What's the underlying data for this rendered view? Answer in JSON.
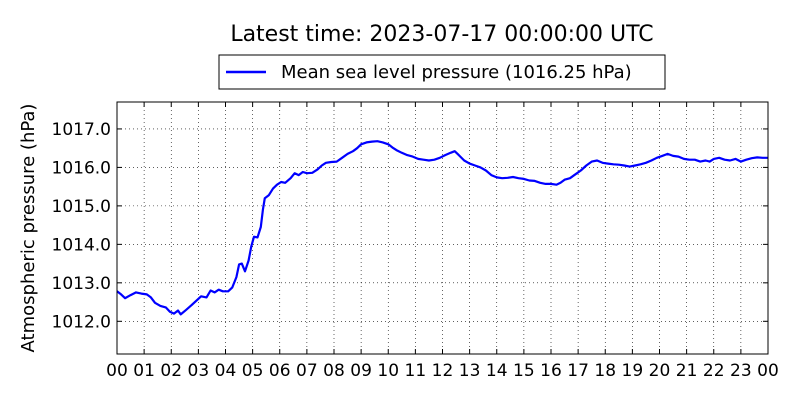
{
  "chart_data": {
    "type": "line",
    "title": "Latest time: 2023-07-17 00:00:00 UTC",
    "xlabel": "",
    "ylabel": "Atmospheric pressure (hPa)",
    "ylim": [
      1011.15,
      1017.7
    ],
    "xlim": [
      0,
      24
    ],
    "grid": true,
    "legend_position": "top-center",
    "color": "#0000ff",
    "x_ticks": [
      "00",
      "01",
      "02",
      "03",
      "04",
      "05",
      "06",
      "07",
      "08",
      "09",
      "10",
      "11",
      "12",
      "13",
      "14",
      "15",
      "16",
      "17",
      "18",
      "19",
      "20",
      "21",
      "22",
      "23",
      "00"
    ],
    "y_ticks": [
      "1012.0",
      "1013.0",
      "1014.0",
      "1015.0",
      "1016.0",
      "1017.0"
    ],
    "series": [
      {
        "name": "Mean sea level pressure (1016.25 hPa)",
        "points": [
          [
            0.0,
            1012.78
          ],
          [
            0.15,
            1012.7
          ],
          [
            0.3,
            1012.6
          ],
          [
            0.5,
            1012.68
          ],
          [
            0.7,
            1012.75
          ],
          [
            0.9,
            1012.72
          ],
          [
            1.1,
            1012.7
          ],
          [
            1.25,
            1012.62
          ],
          [
            1.4,
            1012.48
          ],
          [
            1.6,
            1012.4
          ],
          [
            1.8,
            1012.36
          ],
          [
            1.95,
            1012.25
          ],
          [
            2.1,
            1012.2
          ],
          [
            2.25,
            1012.28
          ],
          [
            2.35,
            1012.18
          ],
          [
            2.55,
            1012.3
          ],
          [
            2.75,
            1012.42
          ],
          [
            2.9,
            1012.52
          ],
          [
            3.1,
            1012.65
          ],
          [
            3.3,
            1012.62
          ],
          [
            3.45,
            1012.8
          ],
          [
            3.6,
            1012.75
          ],
          [
            3.75,
            1012.82
          ],
          [
            3.9,
            1012.78
          ],
          [
            4.1,
            1012.78
          ],
          [
            4.25,
            1012.88
          ],
          [
            4.4,
            1013.15
          ],
          [
            4.5,
            1013.48
          ],
          [
            4.6,
            1013.5
          ],
          [
            4.72,
            1013.3
          ],
          [
            4.85,
            1013.58
          ],
          [
            4.95,
            1013.95
          ],
          [
            5.05,
            1014.2
          ],
          [
            5.18,
            1014.18
          ],
          [
            5.3,
            1014.45
          ],
          [
            5.38,
            1014.9
          ],
          [
            5.45,
            1015.2
          ],
          [
            5.6,
            1015.28
          ],
          [
            5.75,
            1015.45
          ],
          [
            5.9,
            1015.55
          ],
          [
            6.05,
            1015.62
          ],
          [
            6.2,
            1015.6
          ],
          [
            6.4,
            1015.72
          ],
          [
            6.55,
            1015.85
          ],
          [
            6.7,
            1015.8
          ],
          [
            6.85,
            1015.88
          ],
          [
            7.0,
            1015.85
          ],
          [
            7.2,
            1015.86
          ],
          [
            7.4,
            1015.95
          ],
          [
            7.55,
            1016.05
          ],
          [
            7.7,
            1016.12
          ],
          [
            7.9,
            1016.14
          ],
          [
            8.1,
            1016.15
          ],
          [
            8.3,
            1016.25
          ],
          [
            8.5,
            1016.35
          ],
          [
            8.7,
            1016.42
          ],
          [
            8.85,
            1016.5
          ],
          [
            9.0,
            1016.6
          ],
          [
            9.2,
            1016.65
          ],
          [
            9.4,
            1016.67
          ],
          [
            9.6,
            1016.68
          ],
          [
            9.8,
            1016.65
          ],
          [
            10.0,
            1016.6
          ],
          [
            10.15,
            1016.52
          ],
          [
            10.3,
            1016.45
          ],
          [
            10.5,
            1016.38
          ],
          [
            10.7,
            1016.32
          ],
          [
            10.9,
            1016.28
          ],
          [
            11.1,
            1016.22
          ],
          [
            11.3,
            1016.2
          ],
          [
            11.5,
            1016.18
          ],
          [
            11.7,
            1016.2
          ],
          [
            11.9,
            1016.25
          ],
          [
            12.1,
            1016.32
          ],
          [
            12.3,
            1016.38
          ],
          [
            12.45,
            1016.42
          ],
          [
            12.6,
            1016.32
          ],
          [
            12.8,
            1016.18
          ],
          [
            13.0,
            1016.1
          ],
          [
            13.2,
            1016.05
          ],
          [
            13.4,
            1016.0
          ],
          [
            13.6,
            1015.92
          ],
          [
            13.8,
            1015.8
          ],
          [
            14.0,
            1015.74
          ],
          [
            14.2,
            1015.72
          ],
          [
            14.4,
            1015.73
          ],
          [
            14.6,
            1015.75
          ],
          [
            14.8,
            1015.72
          ],
          [
            15.0,
            1015.7
          ],
          [
            15.2,
            1015.66
          ],
          [
            15.4,
            1015.65
          ],
          [
            15.6,
            1015.6
          ],
          [
            15.8,
            1015.57
          ],
          [
            16.0,
            1015.57
          ],
          [
            16.2,
            1015.55
          ],
          [
            16.35,
            1015.6
          ],
          [
            16.5,
            1015.68
          ],
          [
            16.7,
            1015.72
          ],
          [
            16.9,
            1015.82
          ],
          [
            17.1,
            1015.92
          ],
          [
            17.3,
            1016.05
          ],
          [
            17.5,
            1016.15
          ],
          [
            17.7,
            1016.18
          ],
          [
            17.9,
            1016.12
          ],
          [
            18.1,
            1016.1
          ],
          [
            18.3,
            1016.08
          ],
          [
            18.5,
            1016.07
          ],
          [
            18.7,
            1016.05
          ],
          [
            18.9,
            1016.02
          ],
          [
            19.1,
            1016.05
          ],
          [
            19.3,
            1016.08
          ],
          [
            19.5,
            1016.12
          ],
          [
            19.7,
            1016.18
          ],
          [
            19.9,
            1016.25
          ],
          [
            20.1,
            1016.3
          ],
          [
            20.3,
            1016.35
          ],
          [
            20.5,
            1016.3
          ],
          [
            20.7,
            1016.28
          ],
          [
            20.9,
            1016.22
          ],
          [
            21.1,
            1016.2
          ],
          [
            21.3,
            1016.2
          ],
          [
            21.5,
            1016.15
          ],
          [
            21.7,
            1016.18
          ],
          [
            21.85,
            1016.15
          ],
          [
            22.0,
            1016.22
          ],
          [
            22.2,
            1016.25
          ],
          [
            22.4,
            1016.2
          ],
          [
            22.6,
            1016.18
          ],
          [
            22.8,
            1016.22
          ],
          [
            23.0,
            1016.15
          ],
          [
            23.2,
            1016.2
          ],
          [
            23.4,
            1016.24
          ],
          [
            23.6,
            1016.26
          ],
          [
            23.8,
            1016.25
          ],
          [
            24.0,
            1016.25
          ]
        ]
      }
    ]
  }
}
